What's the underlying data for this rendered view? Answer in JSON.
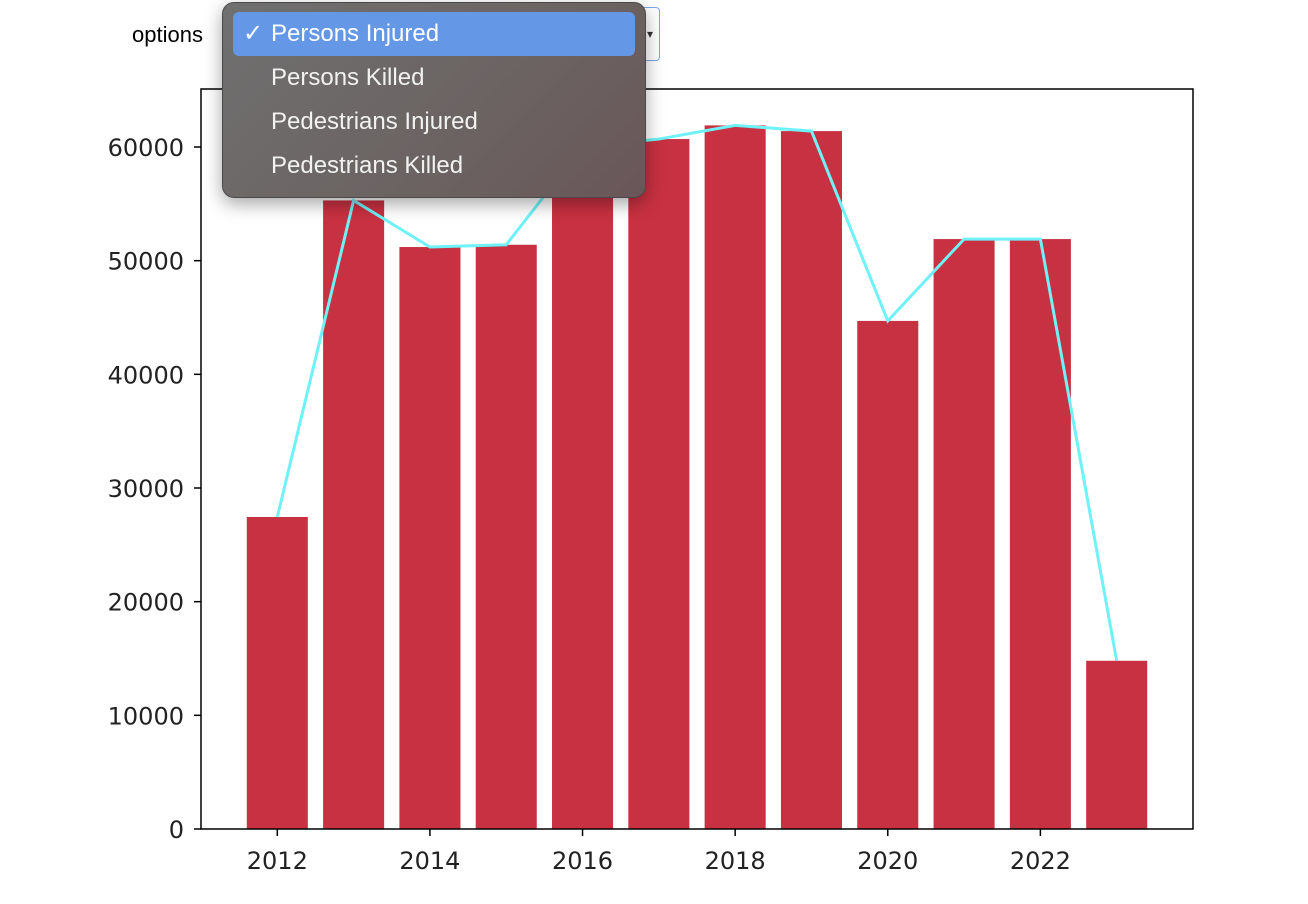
{
  "control": {
    "label": "options",
    "selected": "Persons Injured",
    "menu_items": [
      {
        "label": "Persons Injured",
        "selected": true
      },
      {
        "label": "Persons Killed",
        "selected": false
      },
      {
        "label": "Pedestrians Injured",
        "selected": false
      },
      {
        "label": "Pedestrians Killed",
        "selected": false
      }
    ],
    "check_glyph": "✓"
  },
  "chart_data": {
    "type": "bar",
    "x": [
      2012,
      2013,
      2014,
      2015,
      2016,
      2017,
      2018,
      2019,
      2020,
      2021,
      2022,
      2023
    ],
    "values": [
      27450,
      55300,
      51200,
      51400,
      60000,
      60700,
      61900,
      61400,
      44700,
      51900,
      51900,
      14800
    ],
    "line_values": [
      27450,
      55300,
      51200,
      51400,
      60000,
      60700,
      61900,
      61400,
      44700,
      51900,
      51900,
      14800
    ],
    "bar_color": "#c83141",
    "line_color": "#6ff2f7",
    "xticks": [
      2012,
      2014,
      2016,
      2018,
      2020,
      2022
    ],
    "yticks": [
      0,
      10000,
      20000,
      30000,
      40000,
      50000,
      60000
    ],
    "xlim": [
      2011.0,
      2024.0
    ],
    "ylim": [
      0,
      60000
    ],
    "title": "",
    "xlabel": "",
    "ylabel": ""
  }
}
